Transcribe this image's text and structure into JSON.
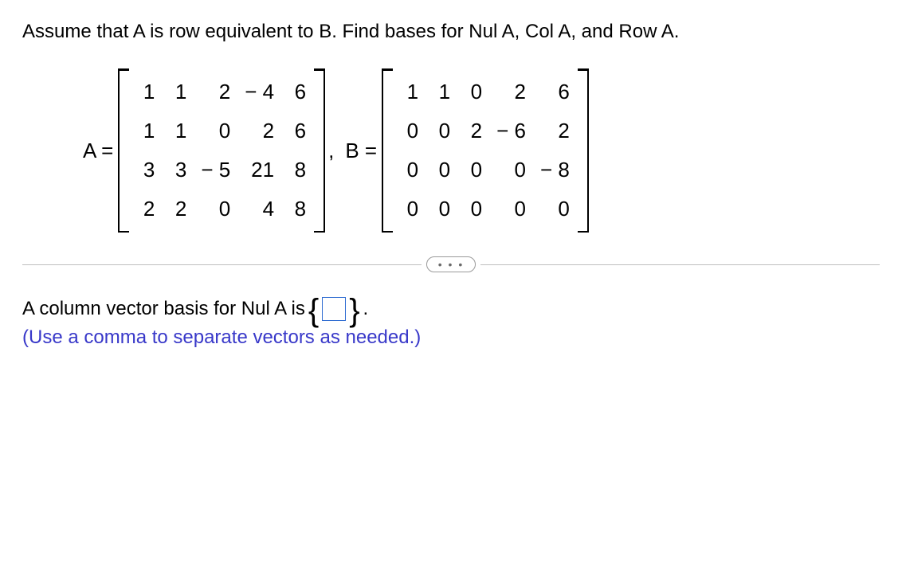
{
  "question": {
    "line": "Assume that A is row equivalent to B. Find bases for Nul A, Col A, and Row A."
  },
  "matrices": {
    "A": {
      "label": "A =",
      "rows": 4,
      "cols": 5,
      "values": [
        [
          "1",
          "1",
          "2",
          "− 4",
          "6"
        ],
        [
          "1",
          "1",
          "0",
          "2",
          "6"
        ],
        [
          "3",
          "3",
          "− 5",
          "21",
          "8"
        ],
        [
          "2",
          "2",
          "0",
          "4",
          "8"
        ]
      ]
    },
    "comma": ",",
    "B": {
      "label": "B =",
      "rows": 4,
      "cols": 5,
      "values": [
        [
          "1",
          "1",
          "0",
          "2",
          "6"
        ],
        [
          "0",
          "0",
          "2",
          "− 6",
          "2"
        ],
        [
          "0",
          "0",
          "0",
          "0",
          "− 8"
        ],
        [
          "0",
          "0",
          "0",
          "0",
          "0"
        ]
      ]
    }
  },
  "divider": {
    "dots": "• • •"
  },
  "answer": {
    "prefix": "A column vector basis for Nul A is ",
    "brace_open": "{",
    "brace_close": "}",
    "suffix": ".",
    "hint": "(Use a comma to separate vectors as needed.)"
  }
}
